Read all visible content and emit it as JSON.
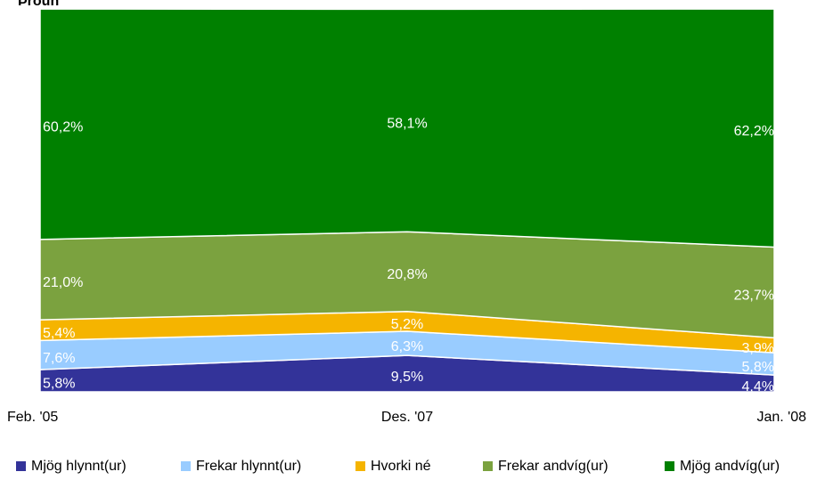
{
  "chart_data": {
    "type": "stacked_area",
    "title": "Þróun",
    "categories": [
      "Feb. '05",
      "Des. '07",
      "Jan. '08"
    ],
    "ylim": [
      0,
      100
    ],
    "legend": "bottom",
    "series": [
      {
        "name": "Mjög hlynnt(ur)",
        "color": "#333399",
        "values": [
          5.8,
          9.5,
          4.4
        ],
        "value_labels": [
          "5,8%",
          "9,5%",
          "4,4%"
        ]
      },
      {
        "name": "Frekar hlynnt(ur)",
        "color": "#99ccff",
        "values": [
          7.6,
          6.3,
          5.8
        ],
        "value_labels": [
          "7,6%",
          "6,3%",
          "5,8%"
        ]
      },
      {
        "name": "Hvorki né",
        "color": "#f5b400",
        "values": [
          5.4,
          5.2,
          3.9
        ],
        "value_labels": [
          "5,4%",
          "5,2%",
          "3,9%"
        ]
      },
      {
        "name": "Frekar andvíg(ur)",
        "color": "#7ba23f",
        "values": [
          21.0,
          20.8,
          23.7
        ],
        "value_labels": [
          "21,0%",
          "20,8%",
          "23,7%"
        ]
      },
      {
        "name": "Mjög andvíg(ur)",
        "color": "#008000",
        "values": [
          60.2,
          58.1,
          62.2
        ],
        "value_labels": [
          "60,2%",
          "58,1%",
          "62,2%"
        ]
      }
    ]
  }
}
